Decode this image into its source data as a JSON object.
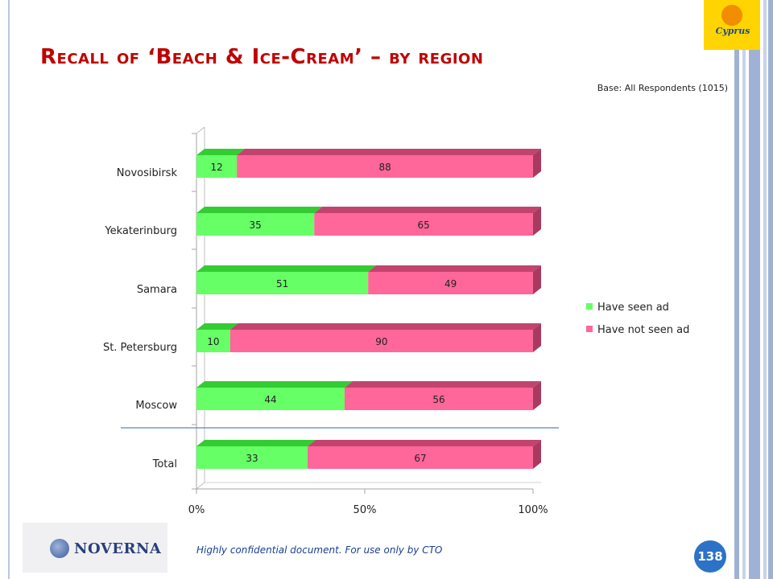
{
  "slide": {
    "title": "Recall of ‘Beach & Ice-Cream’ – by region",
    "base_note": "Base: All Respondents (1015)",
    "footnote": "Highly confidential document. For use only by CTO",
    "page_number": "138",
    "brand_logo_text": "Cyprus",
    "footer_logo_text": "NOVERNA"
  },
  "colors": {
    "title": "#c00000",
    "seen": "#66ff66",
    "seen_dark": "#33cc33",
    "not_seen": "#ff6699",
    "not_seen_dark": "#c2446e",
    "page_badge": "#2c72c7"
  },
  "chart_data": {
    "type": "bar",
    "orientation": "horizontal",
    "stacked": true,
    "categories": [
      "Novosibirsk",
      "Yekaterinburg",
      "Samara",
      "St. Petersburg",
      "Moscow",
      "Total"
    ],
    "series": [
      {
        "name": "Have seen ad",
        "values": [
          12,
          35,
          51,
          10,
          44,
          33
        ]
      },
      {
        "name": "Have not seen ad",
        "values": [
          88,
          65,
          49,
          90,
          56,
          67
        ]
      }
    ],
    "xlim": [
      0,
      100
    ],
    "x_ticks": [
      "0%",
      "50%",
      "100%"
    ],
    "legend_position": "right"
  }
}
